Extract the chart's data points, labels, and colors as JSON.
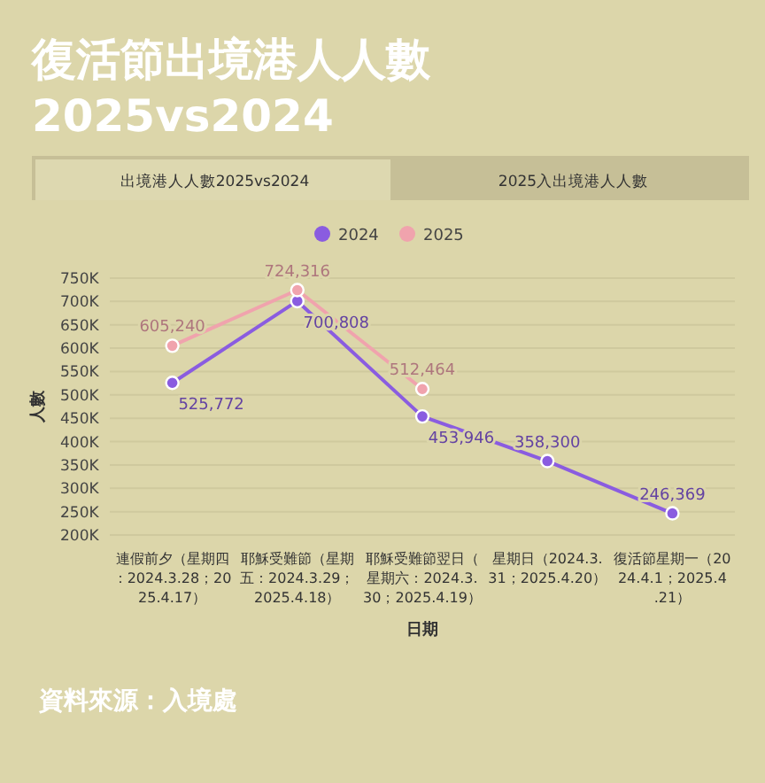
{
  "chart_data": {
    "type": "line",
    "title": "復活節出境港人人數\n2025vs2024",
    "xlabel": "日期",
    "ylabel": "人數",
    "categories": [
      "連假前夕（星期四：2024.3.28；2025.4.17）",
      "耶穌受難節（星期五：2024.3.29；2025.4.18）",
      "耶穌受難節翌日（星期六：2024.3.30；2025.4.19）",
      "星期日（2024.3.31；2025.4.20）",
      "復活節星期一（2024.4.1；2025.4.21）"
    ],
    "series": [
      {
        "name": "2024",
        "color": "#8a5ce0",
        "values": [
          525772,
          700808,
          453946,
          358300,
          246369
        ],
        "value_labels": [
          "525,772",
          "700,808",
          "453,946",
          "358,300",
          "246,369"
        ]
      },
      {
        "name": "2025",
        "color": "#f0a3ad",
        "values": [
          605240,
          724316,
          512464,
          null,
          null
        ],
        "value_labels": [
          "605,240",
          "724,316",
          "512,464",
          null,
          null
        ]
      }
    ],
    "ylim": [
      200000,
      750000
    ],
    "yticks": [
      {
        "value": 200000,
        "label": "200K"
      },
      {
        "value": 250000,
        "label": "250K"
      },
      {
        "value": 300000,
        "label": "300K"
      },
      {
        "value": 350000,
        "label": "350K"
      },
      {
        "value": 400000,
        "label": "400K"
      },
      {
        "value": 450000,
        "label": "450K"
      },
      {
        "value": 500000,
        "label": "500K"
      },
      {
        "value": 550000,
        "label": "550K"
      },
      {
        "value": 600000,
        "label": "600K"
      },
      {
        "value": 650000,
        "label": "650K"
      },
      {
        "value": 700000,
        "label": "700K"
      },
      {
        "value": 750000,
        "label": "750K"
      }
    ],
    "grid": "y",
    "legend": "top",
    "marker": "circle",
    "line_style": "solid",
    "annotations": [
      "出境港人人數2025vs2024",
      "2025入出境港人人數",
      "資料來源：入境處"
    ]
  }
}
